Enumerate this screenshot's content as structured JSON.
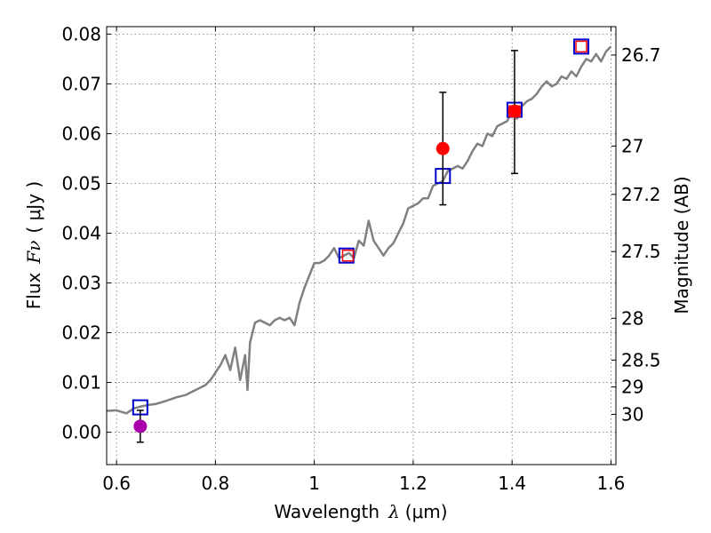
{
  "chart_data": {
    "type": "scatter",
    "title": "",
    "xlabel": "Wavelength",
    "xlabel_symbol": "λ",
    "xlabel_unit": "(μm)",
    "ylabel": "Flux",
    "ylabel_symbol": "Fν",
    "ylabel_unit": "( μJy )",
    "ylabel_right": "Magnitude (AB)",
    "xlim": [
      0.58,
      1.61
    ],
    "ylim": [
      -0.0065,
      0.0815
    ],
    "grid": true,
    "x_ticks": [
      0.6,
      0.8,
      1.0,
      1.2,
      1.4,
      1.6
    ],
    "x_tick_labels": [
      "0.6",
      "0.8",
      "1",
      "1.2",
      "1.4",
      "1.6"
    ],
    "y_ticks": [
      0.0,
      0.01,
      0.02,
      0.03,
      0.04,
      0.05,
      0.06,
      0.07,
      0.08
    ],
    "y_tick_labels": [
      "0.00",
      "0.01",
      "0.02",
      "0.03",
      "0.04",
      "0.05",
      "0.06",
      "0.07",
      "0.08"
    ],
    "right_ticks": [
      {
        "mag": 26.7,
        "flux": 0.0758,
        "label": "26.7"
      },
      {
        "mag": 27.0,
        "flux": 0.0575,
        "label": "27"
      },
      {
        "mag": 27.2,
        "flux": 0.0478,
        "label": "27.2"
      },
      {
        "mag": 27.5,
        "flux": 0.0363,
        "label": "27.5"
      },
      {
        "mag": 28.0,
        "flux": 0.0229,
        "label": "28"
      },
      {
        "mag": 28.5,
        "flux": 0.0145,
        "label": "28.5"
      },
      {
        "mag": 29.0,
        "flux": 0.0091,
        "label": "29"
      },
      {
        "mag": 30.0,
        "flux": 0.0036,
        "label": "30"
      }
    ],
    "series": [
      {
        "name": "model spectrum",
        "kind": "line",
        "color": "#808080",
        "x": [
          0.58,
          0.6,
          0.62,
          0.635,
          0.65,
          0.665,
          0.68,
          0.7,
          0.72,
          0.74,
          0.76,
          0.77,
          0.78,
          0.79,
          0.8,
          0.81,
          0.82,
          0.83,
          0.84,
          0.85,
          0.86,
          0.865,
          0.87,
          0.88,
          0.89,
          0.9,
          0.91,
          0.92,
          0.93,
          0.94,
          0.95,
          0.96,
          0.97,
          0.98,
          0.99,
          1.0,
          1.01,
          1.02,
          1.03,
          1.04,
          1.05,
          1.06,
          1.07,
          1.08,
          1.09,
          1.1,
          1.11,
          1.12,
          1.13,
          1.14,
          1.15,
          1.16,
          1.17,
          1.18,
          1.19,
          1.2,
          1.21,
          1.22,
          1.23,
          1.24,
          1.25,
          1.26,
          1.27,
          1.28,
          1.29,
          1.3,
          1.31,
          1.32,
          1.33,
          1.34,
          1.35,
          1.36,
          1.37,
          1.38,
          1.39,
          1.4,
          1.41,
          1.42,
          1.43,
          1.44,
          1.45,
          1.46,
          1.47,
          1.48,
          1.49,
          1.5,
          1.51,
          1.52,
          1.53,
          1.54,
          1.55,
          1.56,
          1.57,
          1.58,
          1.59,
          1.6
        ],
        "y": [
          0.0043,
          0.0044,
          0.0038,
          0.0048,
          0.0052,
          0.0055,
          0.0057,
          0.0063,
          0.007,
          0.0075,
          0.0085,
          0.009,
          0.0095,
          0.0105,
          0.012,
          0.0135,
          0.0155,
          0.0125,
          0.017,
          0.0105,
          0.0155,
          0.0085,
          0.018,
          0.022,
          0.0225,
          0.022,
          0.0215,
          0.0225,
          0.023,
          0.0225,
          0.023,
          0.0215,
          0.026,
          0.029,
          0.0315,
          0.034,
          0.034,
          0.0345,
          0.0355,
          0.037,
          0.035,
          0.0355,
          0.036,
          0.035,
          0.0385,
          0.0375,
          0.0425,
          0.0385,
          0.037,
          0.0355,
          0.037,
          0.038,
          0.04,
          0.042,
          0.045,
          0.0455,
          0.046,
          0.047,
          0.047,
          0.0495,
          0.05,
          0.0505,
          0.0525,
          0.053,
          0.0535,
          0.053,
          0.0545,
          0.0565,
          0.058,
          0.0575,
          0.06,
          0.0595,
          0.0615,
          0.062,
          0.0625,
          0.0645,
          0.063,
          0.0655,
          0.0665,
          0.067,
          0.068,
          0.0695,
          0.0705,
          0.0695,
          0.07,
          0.0715,
          0.071,
          0.0725,
          0.0715,
          0.0735,
          0.075,
          0.0745,
          0.076,
          0.0745,
          0.0765,
          0.0775
        ]
      },
      {
        "name": "model photometry",
        "kind": "open-square",
        "color": "#0000cc",
        "x": [
          0.648,
          1.065,
          1.26,
          1.405,
          1.54
        ],
        "y": [
          0.005,
          0.0355,
          0.0515,
          0.0648,
          0.0775
        ]
      },
      {
        "name": "model photometry (inner)",
        "kind": "open-square-small",
        "color": "#ff0000",
        "x": [
          1.068,
          1.405,
          1.54
        ],
        "y": [
          0.0355,
          0.0645,
          0.0775
        ]
      },
      {
        "name": "observed (detections)",
        "kind": "filled-circle",
        "color": "#ff0000",
        "x": [
          1.26,
          1.405
        ],
        "y": [
          0.057,
          0.0645
        ],
        "yerr_low": [
          0.0113,
          0.0125
        ],
        "yerr_high": [
          0.0113,
          0.0122
        ]
      },
      {
        "name": "observed (non-detection)",
        "kind": "filled-circle",
        "color": "#aa00aa",
        "x": [
          0.648
        ],
        "y": [
          0.0012
        ],
        "yerr_low": [
          0.0032
        ],
        "yerr_high": [
          0.0032
        ]
      }
    ]
  }
}
